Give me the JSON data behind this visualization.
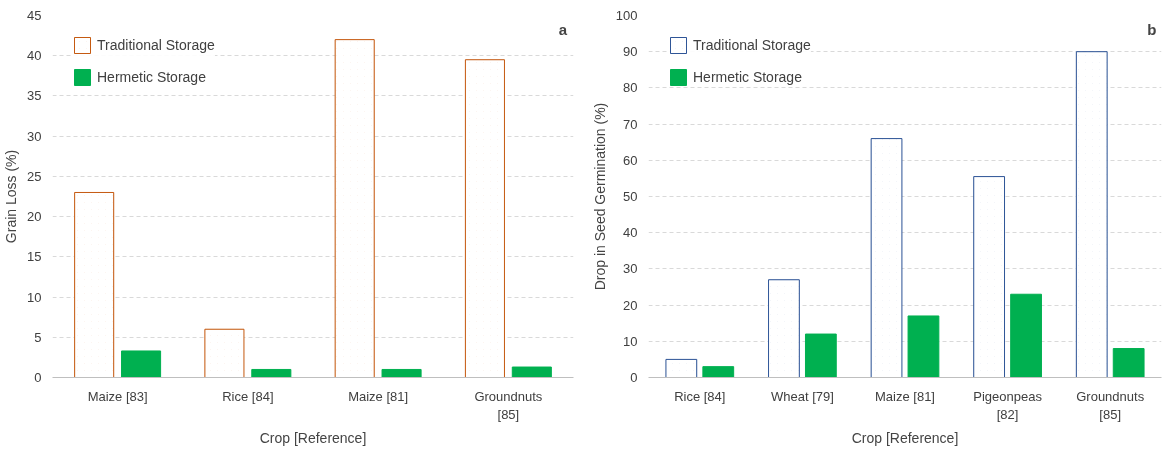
{
  "chart_data": [
    {
      "type": "bar",
      "xlabel": "Crop [Reference]",
      "ylabel": "Grain Loss (%)",
      "categories": [
        "Maize [83]",
        "Rice [84]",
        "Maize [81]",
        "Groundnuts [85]"
      ],
      "series": [
        {
          "name": "Traditional Storage",
          "color": "#c55a11",
          "values": [
            23,
            6,
            42,
            39.5
          ]
        },
        {
          "name": "Hermetic Storage",
          "color": "#00b050",
          "values": [
            3.3,
            1.0,
            1.0,
            1.3
          ]
        }
      ],
      "ylim": [
        0,
        45
      ],
      "yticks": [
        0,
        5,
        10,
        15,
        20,
        25,
        30,
        35,
        40,
        45
      ],
      "grid": "y",
      "legend": "top left",
      "annotations": [
        "a"
      ]
    },
    {
      "type": "bar",
      "xlabel": "Crop [Reference]",
      "ylabel": "Drop in Seed Germination (%)",
      "categories": [
        "Rice [84]",
        "Wheat [79]",
        "Maize [81]",
        "Pigeonpeas [82]",
        "Groundnuts [85]"
      ],
      "series": [
        {
          "name": "Traditional Storage",
          "color": "#2f5597",
          "values": [
            5,
            27,
            66,
            55.5,
            90
          ]
        },
        {
          "name": "Hermetic Storage",
          "color": "#00b050",
          "values": [
            3,
            12,
            17,
            23,
            8
          ]
        }
      ],
      "ylim": [
        0,
        100
      ],
      "yticks": [
        0,
        10,
        20,
        30,
        40,
        50,
        60,
        70,
        80,
        90,
        100
      ],
      "grid": "y",
      "legend": "top left",
      "annotations": [
        "b"
      ]
    }
  ]
}
